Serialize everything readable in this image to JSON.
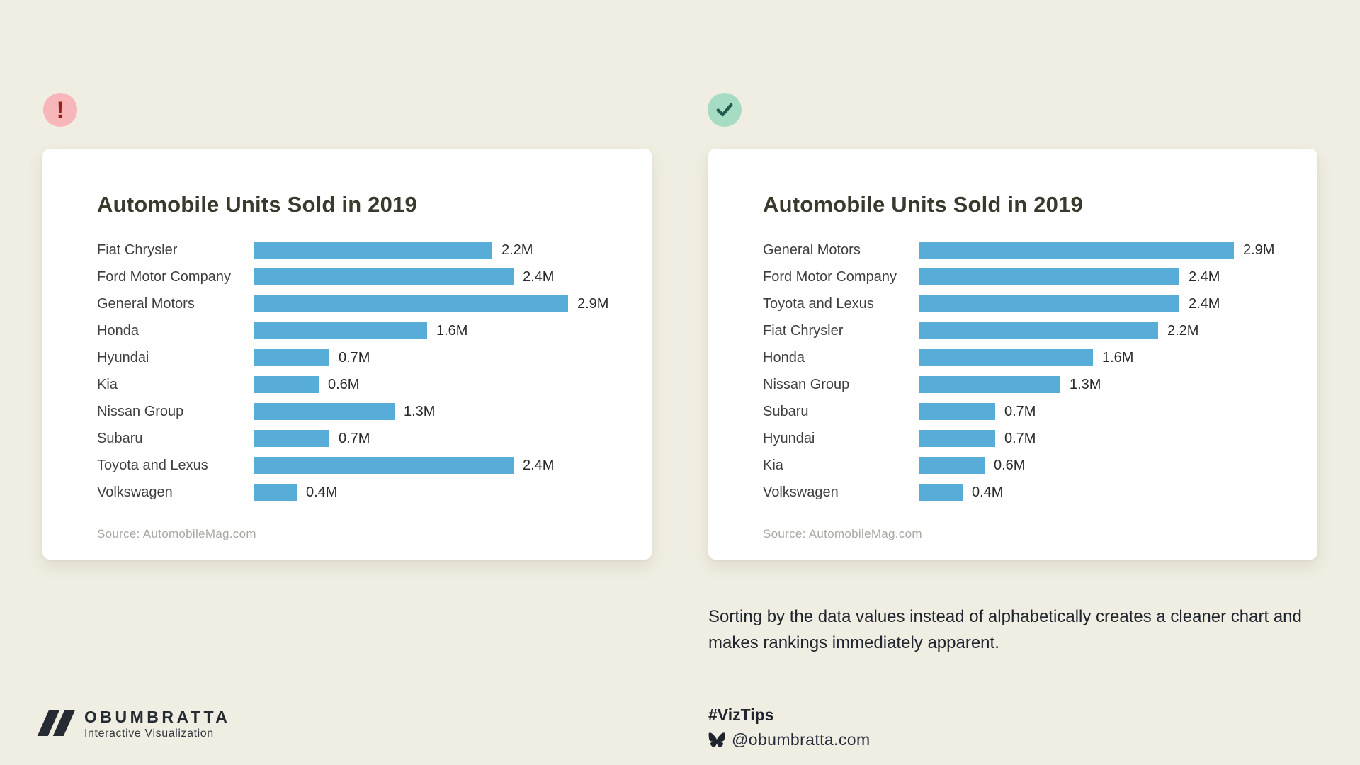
{
  "colors": {
    "background": "#f0eee2",
    "card": "#ffffff",
    "bar": "#58acd8",
    "title": "#3a392d",
    "label": "#3f3f3f",
    "value": "#2a2a2a",
    "source": "#a9a7a0",
    "caption": "#20242e",
    "bad_badge_bg": "#f7b6ba",
    "bad_badge_fg": "#93211c",
    "good_badge_bg": "#a6dcc3",
    "good_badge_fg": "#1e5b4b",
    "brand": "#262b33"
  },
  "badges": {
    "bad_symbol": "!",
    "good_symbol": "checkmark"
  },
  "chart_data": [
    {
      "type": "bar",
      "orientation": "horizontal",
      "sort_order": "alphabetical",
      "title": "Automobile Units Sold in 2019",
      "categories": [
        "Fiat Chrysler",
        "Ford Motor Company",
        "General Motors",
        "Honda",
        "Hyundai",
        "Kia",
        "Nissan Group",
        "Subaru",
        "Toyota and Lexus",
        "Volkswagen"
      ],
      "values": [
        2.2,
        2.4,
        2.9,
        1.6,
        0.7,
        0.6,
        1.3,
        0.7,
        2.4,
        0.4
      ],
      "value_labels": [
        "2.2M",
        "2.4M",
        "2.9M",
        "1.6M",
        "0.7M",
        "0.6M",
        "1.3M",
        "0.7M",
        "2.4M",
        "0.4M"
      ],
      "unit": "millions of units",
      "xlim": [
        0,
        2.9
      ],
      "grid": false,
      "legend": false,
      "source": "Source: AutomobileMag.com"
    },
    {
      "type": "bar",
      "orientation": "horizontal",
      "sort_order": "descending by value",
      "title": "Automobile Units Sold in 2019",
      "categories": [
        "General Motors",
        "Ford Motor Company",
        "Toyota and Lexus",
        "Fiat Chrysler",
        "Honda",
        "Nissan Group",
        "Subaru",
        "Hyundai",
        "Kia",
        "Volkswagen"
      ],
      "values": [
        2.9,
        2.4,
        2.4,
        2.2,
        1.6,
        1.3,
        0.7,
        0.7,
        0.6,
        0.4
      ],
      "value_labels": [
        "2.9M",
        "2.4M",
        "2.4M",
        "2.2M",
        "1.6M",
        "1.3M",
        "0.7M",
        "0.7M",
        "0.6M",
        "0.4M"
      ],
      "unit": "millions of units",
      "xlim": [
        0,
        2.9
      ],
      "grid": false,
      "legend": false,
      "source": "Source: AutomobileMag.com"
    }
  ],
  "caption": "Sorting by the data values instead of alphabetically creates a cleaner chart and makes rankings immediately apparent.",
  "footer": {
    "brand": "OBUMBRATTA",
    "tagline": "Interactive Visualization",
    "hashtag": "#VizTips",
    "bluesky_handle": "@obumbratta.com"
  }
}
